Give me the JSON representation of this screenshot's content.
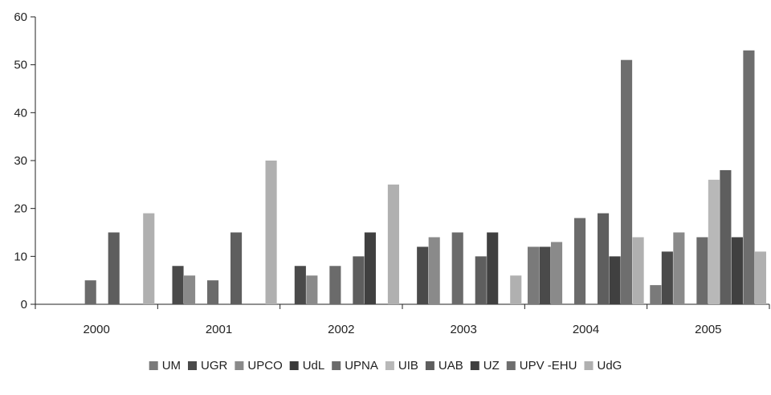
{
  "chart_data": {
    "type": "bar",
    "title": "",
    "xlabel": "",
    "ylabel": "",
    "categories": [
      "2000",
      "2001",
      "2002",
      "2003",
      "2004",
      "2005"
    ],
    "ylim": [
      0,
      60
    ],
    "yticks": [
      0,
      10,
      20,
      30,
      40,
      50,
      60
    ],
    "grid": false,
    "legend_position": "bottom",
    "series": [
      {
        "name": "UM",
        "color": "#7a7a7a",
        "values": [
          0,
          0,
          0,
          0,
          12,
          4
        ]
      },
      {
        "name": "UGR",
        "color": "#4a4a4a",
        "values": [
          0,
          8,
          8,
          12,
          12,
          11
        ]
      },
      {
        "name": "UPCO",
        "color": "#8a8a8a",
        "values": [
          0,
          6,
          6,
          14,
          13,
          15
        ]
      },
      {
        "name": "UdL",
        "color": "#3a3a3a",
        "values": [
          0,
          0,
          0,
          0,
          0,
          0
        ]
      },
      {
        "name": "UPNA",
        "color": "#6b6b6b",
        "values": [
          5,
          5,
          8,
          15,
          18,
          14
        ]
      },
      {
        "name": "UIB",
        "color": "#b8b8b8",
        "values": [
          0,
          0,
          0,
          0,
          0,
          26
        ]
      },
      {
        "name": "UAB",
        "color": "#5e5e5e",
        "values": [
          15,
          15,
          10,
          10,
          19,
          28
        ]
      },
      {
        "name": "UZ",
        "color": "#404040",
        "values": [
          0,
          0,
          15,
          15,
          10,
          14
        ]
      },
      {
        "name": "UPV -EHU",
        "color": "#6e6e6e",
        "values": [
          0,
          0,
          0,
          0,
          51,
          53
        ]
      },
      {
        "name": "UdG",
        "color": "#b0b0b0",
        "values": [
          19,
          30,
          25,
          6,
          14,
          11
        ]
      }
    ]
  }
}
